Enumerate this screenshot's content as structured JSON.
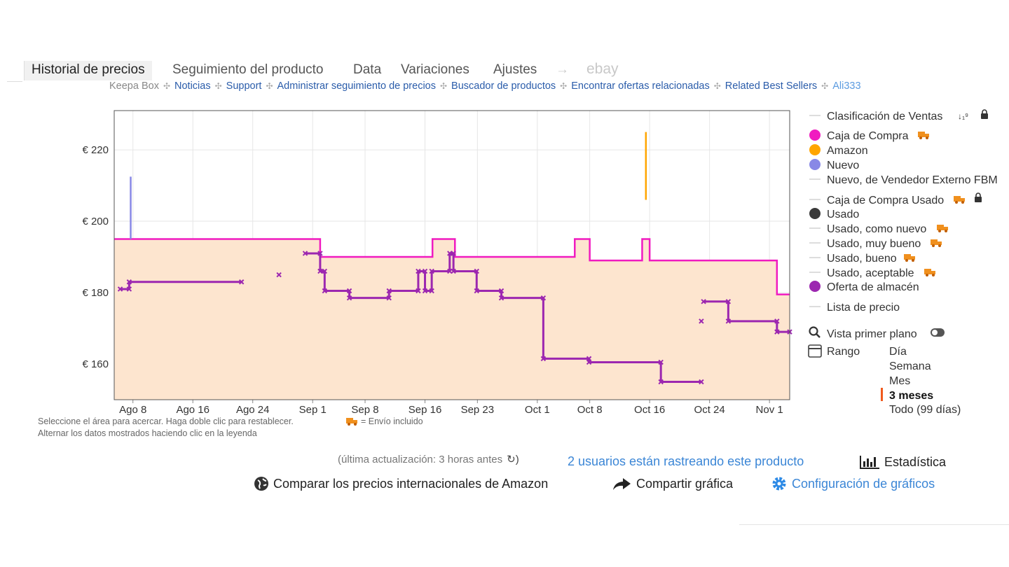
{
  "tabs": [
    "Historial de precios",
    "Seguimiento del producto",
    "Data",
    "Variaciones",
    "Ajustes",
    "ebay"
  ],
  "links": {
    "label": "Keepa Box",
    "items": [
      "Noticias",
      "Support",
      "Administrar seguimiento de precios",
      "Buscador de productos",
      "Encontrar ofertas relacionadas",
      "Related Best Sellers",
      "Ali333"
    ]
  },
  "chart_data": {
    "type": "line",
    "xlim": [
      5.5,
      95.7
    ],
    "xticks": [
      {
        "value": 8,
        "label": "Ago 8"
      },
      {
        "value": 16,
        "label": "Ago 16"
      },
      {
        "value": 24,
        "label": "Ago 24"
      },
      {
        "value": 32,
        "label": "Sep 1"
      },
      {
        "value": 39,
        "label": "Sep 8"
      },
      {
        "value": 47,
        "label": "Sep 16"
      },
      {
        "value": 54,
        "label": "Sep 23"
      },
      {
        "value": 62,
        "label": "Oct 1"
      },
      {
        "value": 69,
        "label": "Oct 8"
      },
      {
        "value": 77,
        "label": "Oct 16"
      },
      {
        "value": 85,
        "label": "Oct 24"
      },
      {
        "value": 93,
        "label": "Nov 1"
      }
    ],
    "ylim": [
      150,
      231
    ],
    "yticks": [
      {
        "value": 160,
        "label": "€ 160"
      },
      {
        "value": 180,
        "label": "€ 180"
      },
      {
        "value": 200,
        "label": "€ 200"
      },
      {
        "value": 220,
        "label": "€ 220"
      }
    ],
    "grid": true,
    "series": [
      {
        "name": "Caja de Compra",
        "color": "#f01bc0",
        "fill": "#fde5cf",
        "x": [
          5.5,
          33,
          33,
          48,
          48,
          51,
          51,
          67,
          67,
          69,
          69,
          76,
          76,
          77,
          77,
          94,
          94,
          95.7
        ],
        "values": [
          195,
          195,
          190,
          190,
          195,
          195,
          190,
          190,
          195,
          195,
          189,
          189,
          195,
          195,
          189,
          189,
          179.5,
          179.5
        ]
      },
      {
        "name": "Oferta de almacén",
        "color": "#9c27b0",
        "markers": "x",
        "x": [
          6.3,
          7.5,
          7.5,
          22.5,
          null,
          27.5,
          null,
          31,
          33,
          33,
          33.6,
          33.6,
          36.9,
          36.9,
          42.2,
          42.2,
          46.1,
          46.1,
          47,
          47,
          47.9,
          47.9,
          50.3,
          50.3,
          50.8,
          50.8,
          53.9,
          53.9,
          57.2,
          57.2,
          62.8,
          62.8,
          68.9,
          68.9,
          78.5,
          78.5,
          83.9,
          null,
          83.9,
          null,
          84.2,
          87.5,
          87.5,
          94,
          94,
          95.7
        ],
        "values": [
          181,
          181,
          183,
          183,
          null,
          185,
          null,
          191,
          191,
          186,
          186,
          180.5,
          180.5,
          178.5,
          178.5,
          180.5,
          180.5,
          186,
          186,
          180.5,
          180.5,
          186,
          186,
          191,
          191,
          186,
          186,
          180.5,
          180.5,
          178.5,
          178.5,
          161.5,
          161.5,
          160.5,
          160.5,
          155,
          155,
          null,
          172,
          null,
          177.5,
          177.5,
          172,
          172,
          169,
          169
        ]
      },
      {
        "name": "Amazon",
        "color": "#ffa500",
        "x": [
          76.5,
          76.5
        ],
        "values": [
          206,
          225
        ]
      },
      {
        "name": "Nuevo",
        "color": "#8888e6",
        "x": [
          7.7,
          7.7
        ],
        "values": [
          195,
          212.5
        ]
      }
    ]
  },
  "legend_other": {
    "sales_rank": "Clasificación de Ventas",
    "fbm": "Nuevo, de Vendedor Externo FBM",
    "used_buybox": "Caja de Compra Usado",
    "used": {
      "label": "Usado",
      "color": "#3a3a3a"
    },
    "like_new": "Usado, como nuevo",
    "very_good": "Usado, muy bueno",
    "good": "Usado, bueno",
    "acceptable": "Usado, aceptable",
    "list_price": "Lista de precio"
  },
  "controls": {
    "close_up": "Vista primer plano",
    "range": "Rango",
    "range_options": [
      "Día",
      "Semana",
      "Mes",
      "3 meses",
      "Todo (99 días)"
    ]
  },
  "notes": {
    "zoom": "Seleccione el área para acercar. Haga doble clic para restablecer.",
    "shipping": "= Envío incluido",
    "toggle": "Alternar los datos mostrados haciendo clic en la leyenda"
  },
  "footer": {
    "updated": "(última actualización: 3 horas antes",
    "tracking": "2 usuarios están rastreando este producto",
    "stats": "Estadística",
    "compare": "Comparar los precios internacionales de Amazon",
    "share": "Compartir gráfica",
    "settings": "Configuración de gráficos"
  }
}
